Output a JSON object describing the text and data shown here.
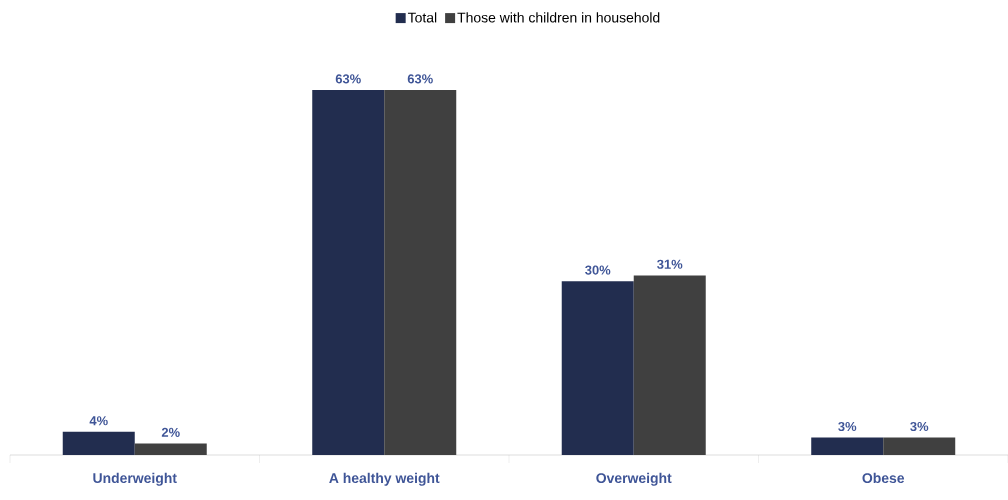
{
  "chart_data": {
    "type": "bar",
    "categories": [
      "Underweight",
      "A healthy weight",
      "Overweight",
      "Obese"
    ],
    "series": [
      {
        "name": "Total",
        "color": "#222d4f",
        "values": [
          4,
          63,
          30,
          3
        ],
        "value_labels": [
          "4%",
          "63%",
          "30%",
          "3%"
        ]
      },
      {
        "name": "Those with children in household",
        "color": "#404040",
        "values": [
          2,
          63,
          31,
          3
        ],
        "value_labels": [
          "2%",
          "63%",
          "31%",
          "3%"
        ]
      }
    ],
    "legend": "top",
    "tick_labels": "x"
  }
}
